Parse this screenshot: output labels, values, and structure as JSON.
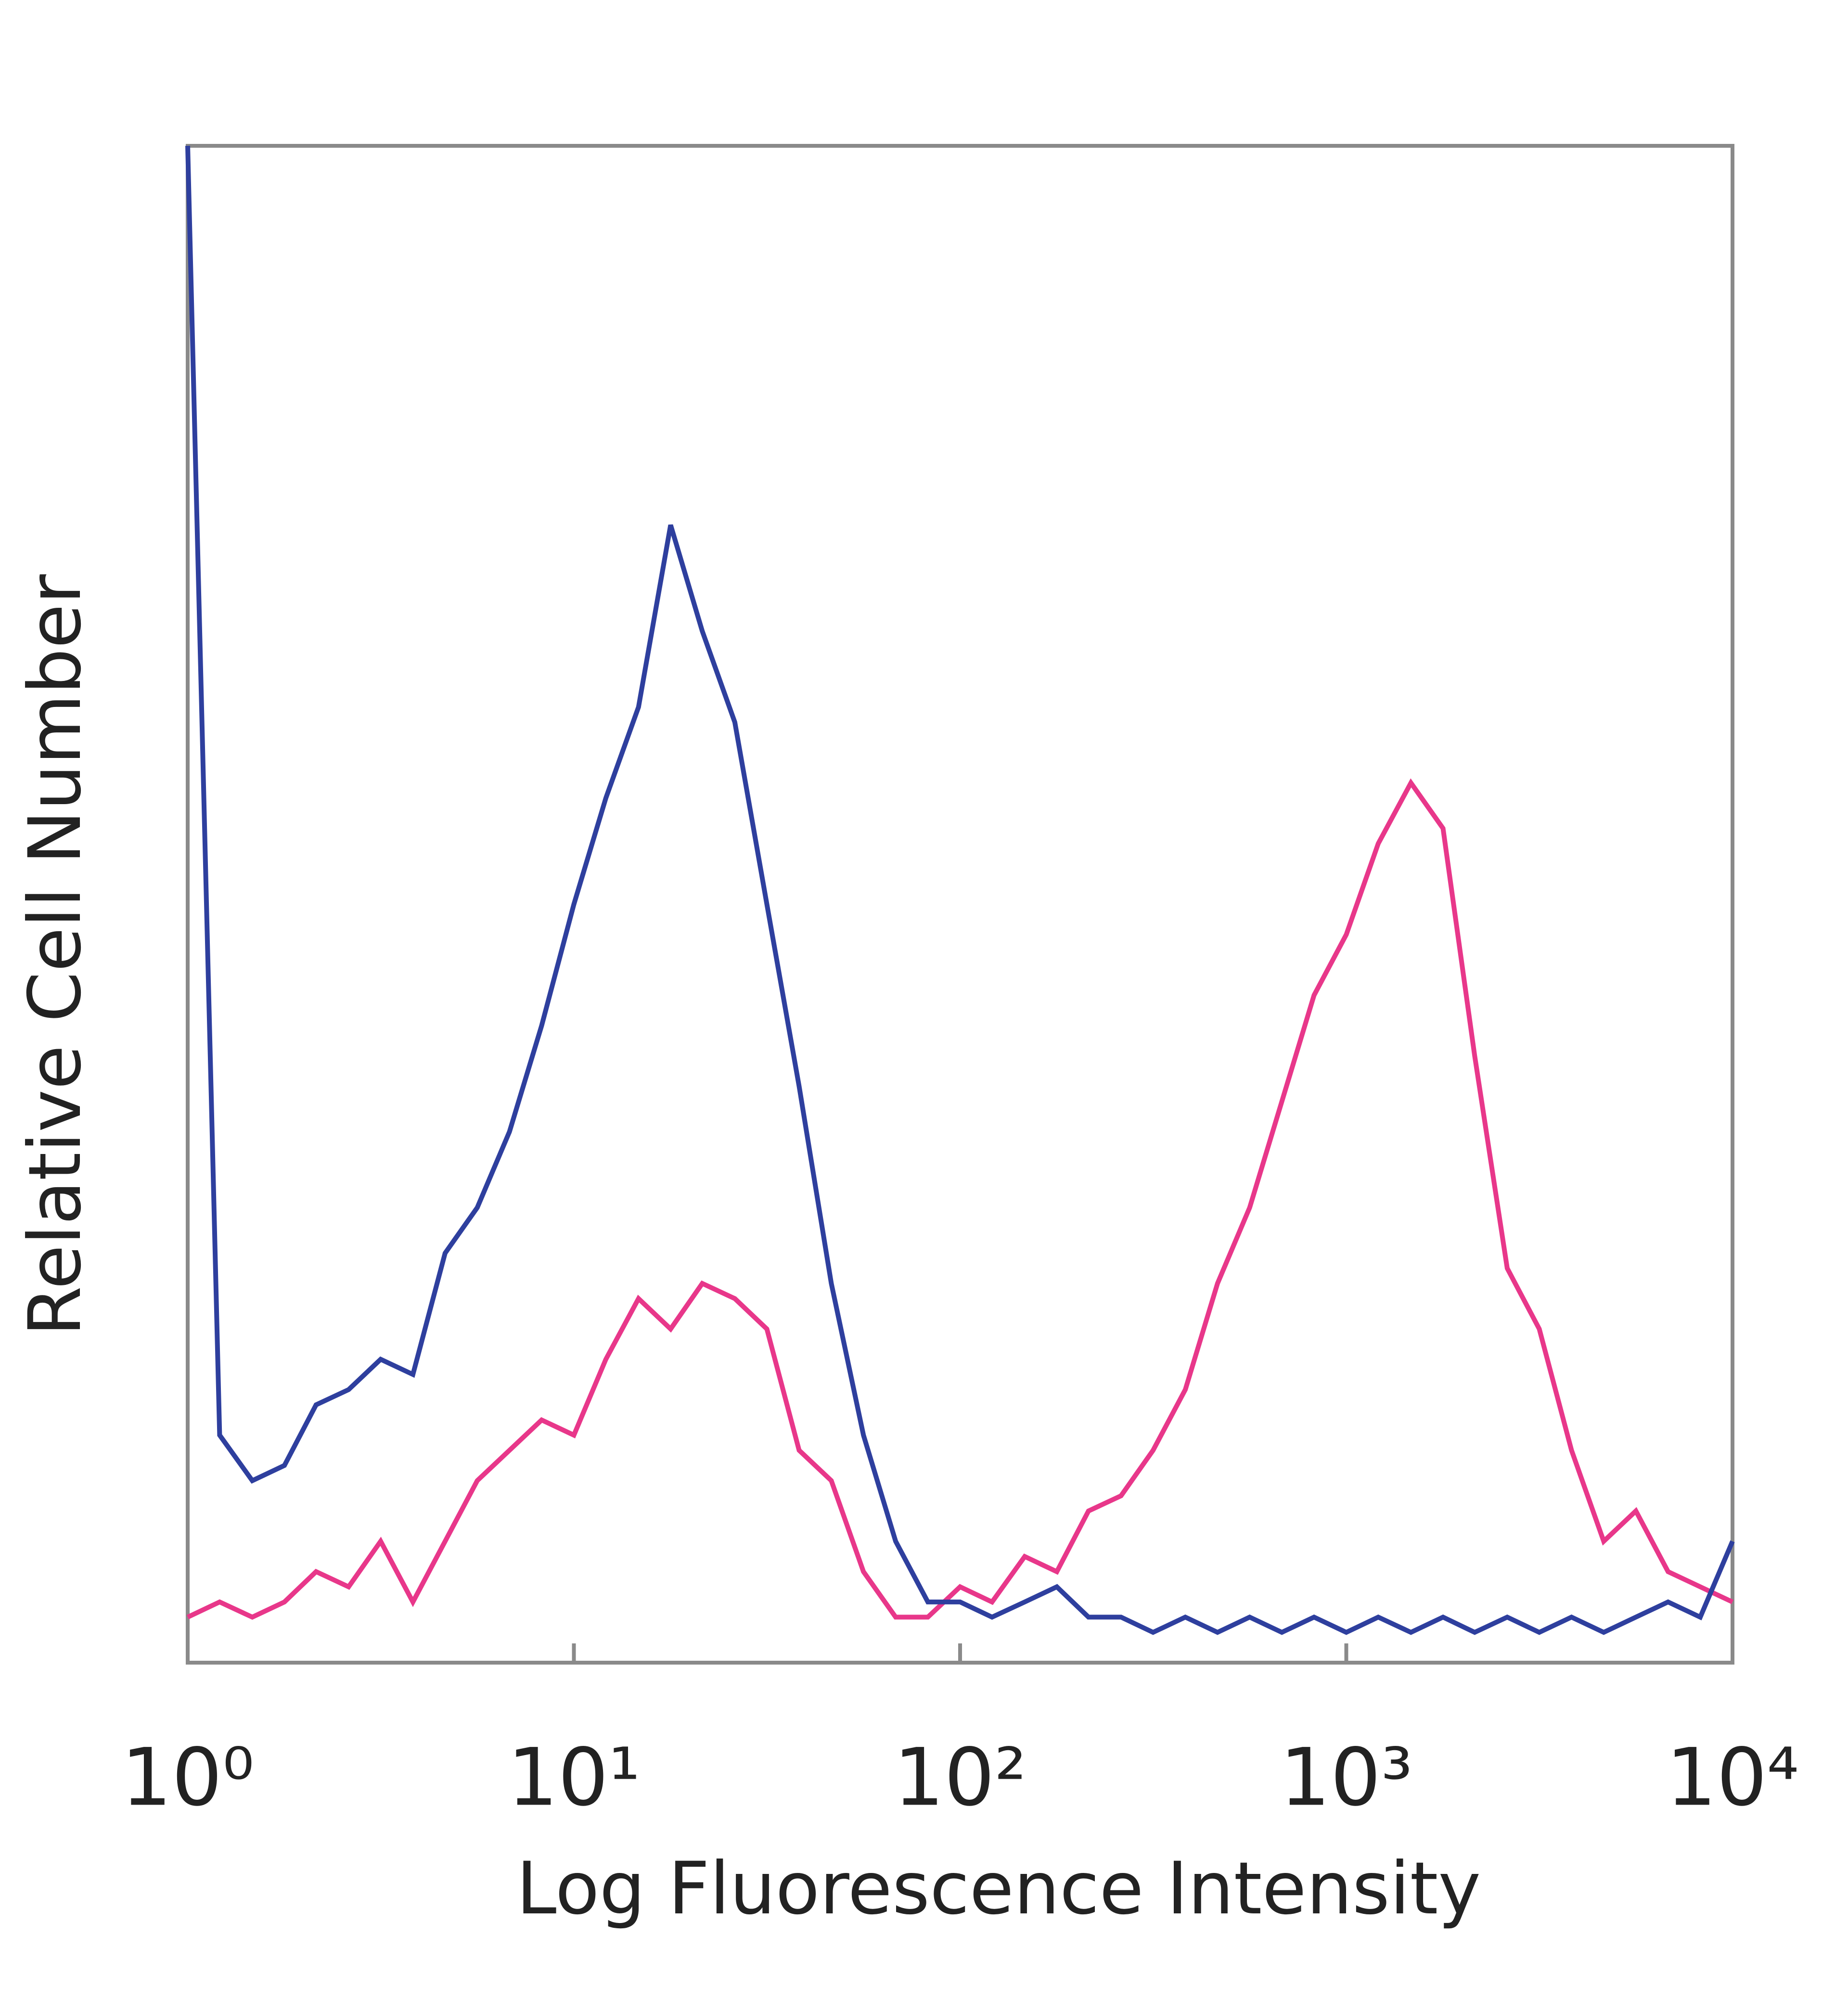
{
  "chart_data": {
    "type": "line",
    "xscale": "log",
    "xlabel": "Log Fluorescence Intensity",
    "ylabel": "Relative Cell Number",
    "x": [
      1,
      1.21,
      1.47,
      1.78,
      2.15,
      2.61,
      3.16,
      3.83,
      4.64,
      5.62,
      6.81,
      8.25,
      10,
      12.1,
      14.7,
      17.8,
      21.5,
      26.1,
      31.6,
      38.3,
      46.4,
      56.2,
      68.1,
      82.5,
      100,
      121,
      147,
      178,
      215,
      261,
      316,
      383,
      464,
      562,
      681,
      825,
      1000,
      1210,
      1470,
      1780,
      2150,
      2610,
      3160,
      3830,
      4640,
      5620,
      6810,
      8250,
      10000
    ],
    "series": [
      {
        "color": "#2e3f9e",
        "values": [
          100,
          15,
          12,
          13,
          17,
          18,
          20,
          19,
          27,
          30,
          35,
          42,
          50,
          57,
          63,
          75,
          68,
          62,
          50,
          38,
          25,
          15,
          8,
          4,
          4,
          3,
          4,
          5,
          3,
          3,
          2,
          3,
          2,
          3,
          2,
          3,
          2,
          3,
          2,
          3,
          2,
          3,
          2,
          3,
          2,
          3,
          4,
          3,
          8
        ]
      },
      {
        "color": "#e8378a",
        "values": [
          3,
          4,
          3,
          4,
          6,
          5,
          8,
          4,
          8,
          12,
          14,
          16,
          15,
          20,
          24,
          22,
          25,
          24,
          22,
          14,
          12,
          6,
          3,
          3,
          5,
          4,
          7,
          6,
          10,
          11,
          14,
          18,
          25,
          30,
          37,
          44,
          48,
          54,
          58,
          55,
          40,
          26,
          22,
          14,
          8,
          10,
          6,
          5,
          4
        ]
      }
    ],
    "xlim": [
      1,
      10000
    ],
    "xticks": [
      {
        "value": 1,
        "label": "10⁰"
      },
      {
        "value": 10,
        "label": "10¹"
      },
      {
        "value": 100,
        "label": "10²"
      },
      {
        "value": 1000,
        "label": "10³"
      },
      {
        "value": 10000,
        "label": "10⁴"
      }
    ],
    "ylim": [
      0,
      100
    ]
  }
}
